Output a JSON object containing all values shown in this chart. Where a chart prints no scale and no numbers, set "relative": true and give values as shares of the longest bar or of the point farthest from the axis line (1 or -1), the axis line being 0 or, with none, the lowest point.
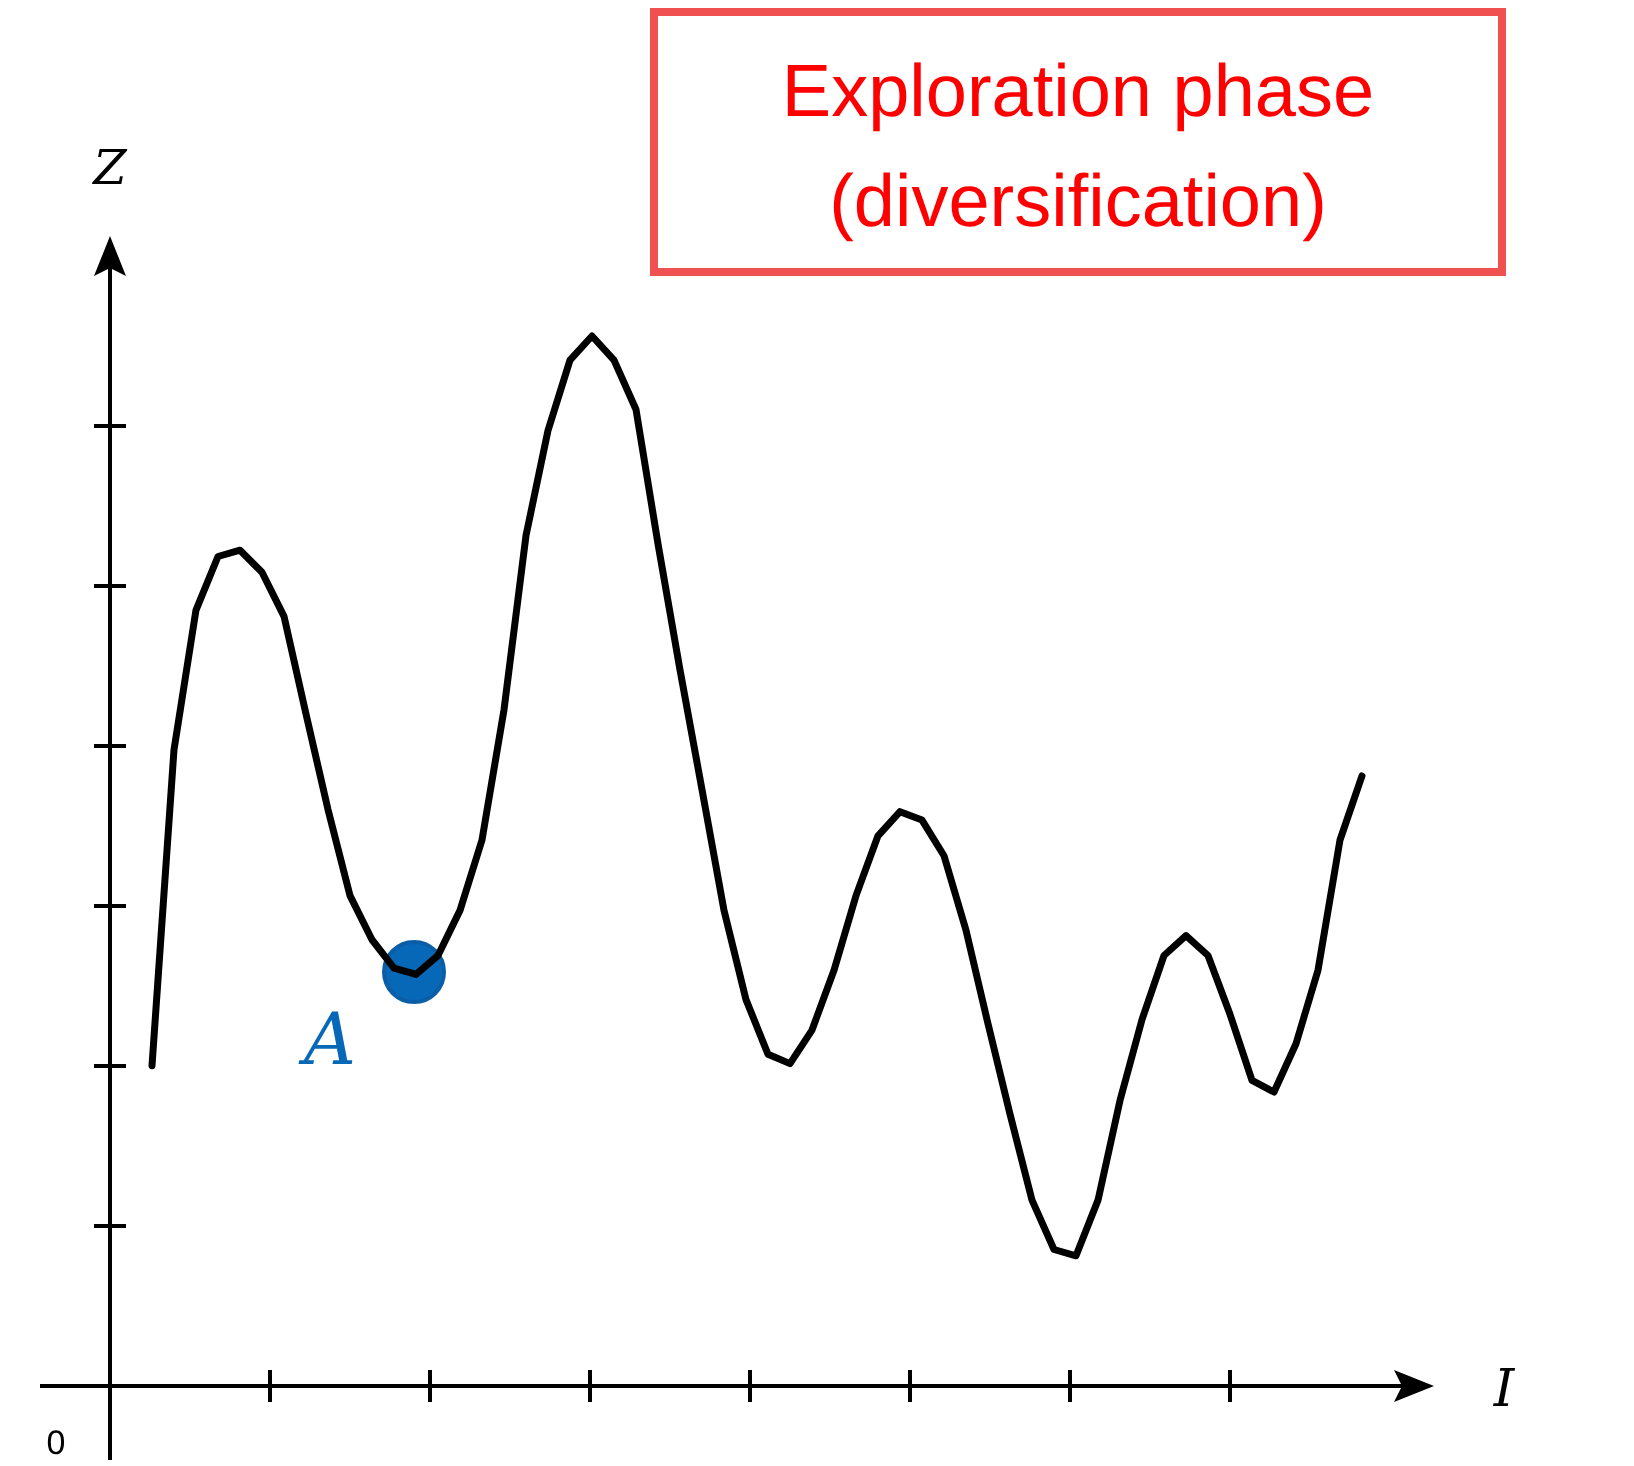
{
  "chart_data": {
    "type": "line",
    "title": "Exploration phase\n(diversification)",
    "xlabel": "I",
    "ylabel": "Z",
    "relative": true,
    "annotations": [
      "0",
      "A"
    ],
    "categories": [
      null,
      null,
      null,
      null,
      null,
      null,
      null,
      null,
      null,
      null,
      null,
      null,
      null,
      null,
      null,
      null,
      null,
      null,
      null,
      null,
      null,
      null,
      null,
      null,
      null,
      null,
      null,
      null,
      null,
      null,
      null,
      null,
      null,
      null,
      null,
      null,
      null,
      null,
      null,
      null,
      null,
      null,
      null,
      null,
      null,
      null,
      null,
      null,
      null,
      null,
      null,
      null,
      null,
      null,
      null,
      null
    ],
    "series": [
      {
        "color": "#000000",
        "values": [
          0.305,
          0.606,
          0.739,
          0.79,
          0.796,
          0.775,
          0.733,
          0.64,
          0.549,
          0.467,
          0.425,
          0.398,
          0.392,
          0.41,
          0.453,
          0.52,
          0.644,
          0.81,
          0.91,
          0.977,
          1,
          0.977,
          0.93,
          0.802,
          0.682,
          0.568,
          0.453,
          0.368,
          0.316,
          0.307,
          0.339,
          0.396,
          0.467,
          0.524,
          0.547,
          0.539,
          0.505,
          0.434,
          0.345,
          0.259,
          0.177,
          0.13,
          0.124,
          0.177,
          0.272,
          0.349,
          0.41,
          0.429,
          0.41,
          0.354,
          0.291,
          0.28,
          0.326,
          0.396,
          0.52,
          0.581
        ]
      }
    ]
  }
}
